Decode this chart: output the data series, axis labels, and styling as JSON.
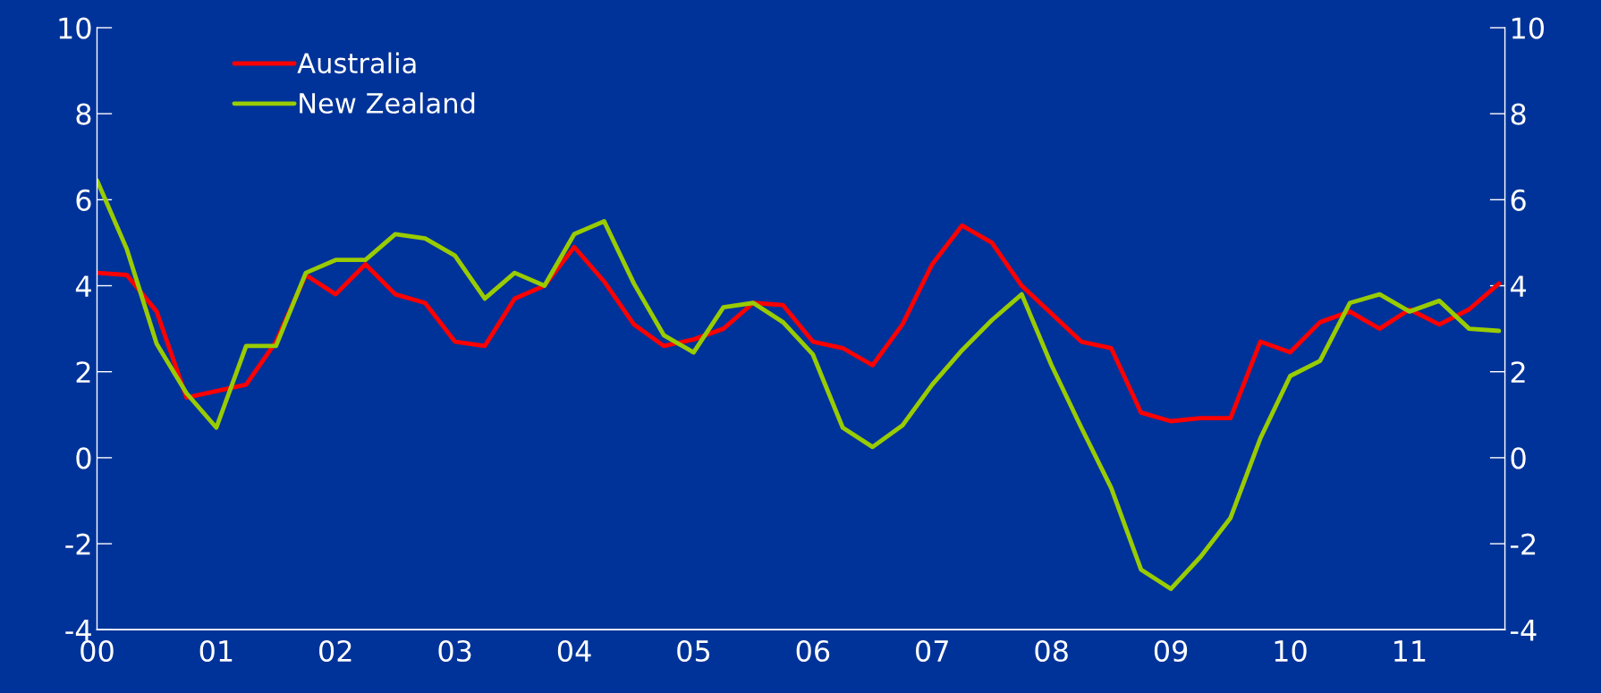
{
  "chart_data": {
    "type": "line",
    "x": [
      2000,
      2000.25,
      2000.5,
      2000.75,
      2001,
      2001.25,
      2001.5,
      2001.75,
      2002,
      2002.25,
      2002.5,
      2002.75,
      2003,
      2003.25,
      2003.5,
      2003.75,
      2004,
      2004.25,
      2004.5,
      2004.75,
      2005,
      2005.25,
      2005.5,
      2005.75,
      2006,
      2006.25,
      2006.5,
      2006.75,
      2007,
      2007.25,
      2007.5,
      2007.75,
      2008,
      2008.25,
      2008.5,
      2008.75,
      2009,
      2009.25,
      2009.5,
      2009.75,
      2010,
      2010.25,
      2010.5,
      2010.75,
      2011,
      2011.25,
      2011.5,
      2011.75
    ],
    "series": [
      {
        "name": "Australia",
        "color": "#ff0000",
        "values": [
          4.3,
          4.25,
          3.4,
          1.4,
          1.55,
          1.7,
          2.7,
          4.25,
          3.8,
          4.5,
          3.8,
          3.6,
          2.7,
          2.6,
          3.7,
          4.0,
          4.9,
          4.1,
          3.1,
          2.6,
          2.75,
          3.0,
          3.6,
          3.55,
          2.7,
          2.55,
          2.15,
          3.1,
          4.5,
          5.4,
          5.0,
          4.0,
          3.35,
          2.7,
          2.55,
          1.05,
          0.85,
          0.92,
          0.92,
          2.7,
          2.45,
          3.15,
          3.4,
          3.0,
          3.45,
          3.1,
          3.45,
          4.05
        ]
      },
      {
        "name": "New Zealand",
        "color": "#99cc00",
        "values": [
          6.45,
          4.85,
          2.65,
          1.5,
          0.7,
          2.6,
          2.6,
          4.3,
          4.6,
          4.6,
          5.2,
          5.1,
          4.7,
          3.7,
          4.3,
          4.0,
          5.2,
          5.5,
          4.05,
          2.85,
          2.45,
          3.5,
          3.6,
          3.15,
          2.4,
          0.7,
          0.25,
          0.75,
          1.7,
          2.5,
          3.2,
          3.8,
          2.15,
          0.7,
          -0.7,
          -2.6,
          -3.05,
          -2.3,
          -1.4,
          0.45,
          1.9,
          2.25,
          3.6,
          3.8,
          3.4,
          3.65,
          3.0,
          2.95
        ]
      }
    ],
    "xlim": [
      2000,
      2011.8
    ],
    "xticks": [
      {
        "value": 2000,
        "label": "00"
      },
      {
        "value": 2001,
        "label": "01"
      },
      {
        "value": 2002,
        "label": "02"
      },
      {
        "value": 2003,
        "label": "03"
      },
      {
        "value": 2004,
        "label": "04"
      },
      {
        "value": 2005,
        "label": "05"
      },
      {
        "value": 2006,
        "label": "06"
      },
      {
        "value": 2007,
        "label": "07"
      },
      {
        "value": 2008,
        "label": "08"
      },
      {
        "value": 2009,
        "label": "09"
      },
      {
        "value": 2010,
        "label": "10"
      },
      {
        "value": 2011,
        "label": "11"
      }
    ],
    "ylim": [
      -4,
      10
    ],
    "yticks": [
      -4,
      -2,
      0,
      2,
      4,
      6,
      8,
      10
    ],
    "y2lim": [
      -4,
      10
    ],
    "y2ticks": [
      -4,
      -2,
      0,
      2,
      4,
      6,
      8,
      10
    ],
    "grid": false,
    "legend": "top left",
    "marker": "none",
    "line_style": "solid"
  }
}
